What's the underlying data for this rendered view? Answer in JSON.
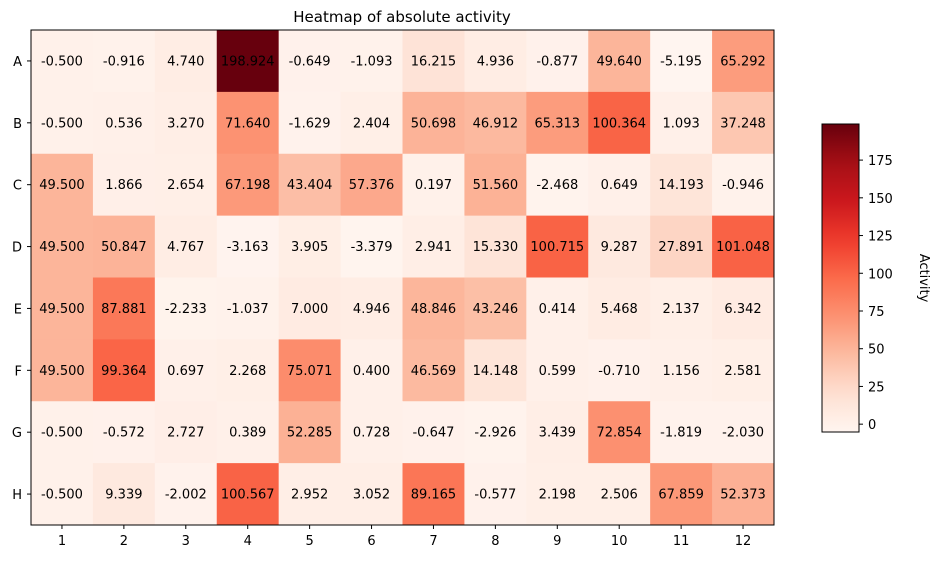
{
  "chart_data": {
    "type": "heatmap",
    "title": "Heatmap of absolute activity",
    "x_categories": [
      "1",
      "2",
      "3",
      "4",
      "5",
      "6",
      "7",
      "8",
      "9",
      "10",
      "11",
      "12"
    ],
    "y_categories": [
      "A",
      "B",
      "C",
      "D",
      "E",
      "F",
      "G",
      "H"
    ],
    "values": [
      [
        -0.5,
        -0.916,
        4.74,
        198.924,
        -0.649,
        -1.093,
        16.215,
        4.936,
        -0.877,
        49.64,
        -5.195,
        65.292
      ],
      [
        -0.5,
        0.536,
        3.27,
        71.64,
        -1.629,
        2.404,
        50.698,
        46.912,
        65.313,
        100.364,
        1.093,
        37.248
      ],
      [
        49.5,
        1.866,
        2.654,
        67.198,
        43.404,
        57.376,
        0.197,
        51.56,
        -2.468,
        0.649,
        14.193,
        -0.946
      ],
      [
        49.5,
        50.847,
        4.767,
        -3.163,
        3.905,
        -3.379,
        2.941,
        15.33,
        100.715,
        9.287,
        27.891,
        101.048
      ],
      [
        49.5,
        87.881,
        -2.233,
        -1.037,
        7.0,
        4.946,
        48.846,
        43.246,
        0.414,
        5.468,
        2.137,
        6.342
      ],
      [
        49.5,
        99.364,
        0.697,
        2.268,
        75.071,
        0.4,
        46.569,
        14.148,
        0.599,
        -0.71,
        1.156,
        2.581
      ],
      [
        -0.5,
        -0.572,
        2.727,
        0.389,
        52.285,
        0.728,
        -0.647,
        -2.926,
        3.439,
        72.854,
        -1.819,
        -2.03
      ],
      [
        -0.5,
        9.339,
        -2.002,
        100.567,
        2.952,
        3.052,
        89.165,
        -0.577,
        2.198,
        2.506,
        67.859,
        52.373
      ]
    ],
    "cell_labels": [
      [
        "-0.500",
        "-0.916",
        "4.740",
        "198.924",
        "-0.649",
        "-1.093",
        "16.215",
        "4.936",
        "-0.877",
        "49.640",
        "-5.195",
        "65.292"
      ],
      [
        "-0.500",
        "0.536",
        "3.270",
        "71.640",
        "-1.629",
        "2.404",
        "50.698",
        "46.912",
        "65.313",
        "100.364",
        "1.093",
        "37.248"
      ],
      [
        "49.500",
        "1.866",
        "2.654",
        "67.198",
        "43.404",
        "57.376",
        "0.197",
        "51.560",
        "-2.468",
        "0.649",
        "14.193",
        "-0.946"
      ],
      [
        "49.500",
        "50.847",
        "4.767",
        "-3.163",
        "3.905",
        "-3.379",
        "2.941",
        "15.330",
        "100.715",
        "9.287",
        "27.891",
        "101.048"
      ],
      [
        "49.500",
        "87.881",
        "-2.233",
        "-1.037",
        "7.000",
        "4.946",
        "48.846",
        "43.246",
        "0.414",
        "5.468",
        "2.137",
        "6.342"
      ],
      [
        "49.500",
        "99.364",
        "0.697",
        "2.268",
        "75.071",
        "0.400",
        "46.569",
        "14.148",
        "0.599",
        "-0.710",
        "1.156",
        "2.581"
      ],
      [
        "-0.500",
        "-0.572",
        "2.727",
        "0.389",
        "52.285",
        "0.728",
        "-0.647",
        "-2.926",
        "3.439",
        "72.854",
        "-1.819",
        "-2.030"
      ],
      [
        "-0.500",
        "9.339",
        "-2.002",
        "100.567",
        "2.952",
        "3.052",
        "89.165",
        "-0.577",
        "2.198",
        "2.506",
        "67.859",
        "52.373"
      ]
    ],
    "colormap": "Reds",
    "vmin": -5.195,
    "vmax": 198.924,
    "colorbar": {
      "label": "Activity",
      "ticks": [
        0,
        25,
        50,
        75,
        100,
        125,
        150,
        175
      ],
      "tick_labels": [
        "0",
        "25",
        "50",
        "75",
        "100",
        "125",
        "150",
        "175"
      ]
    },
    "grid": false,
    "legend": "none"
  }
}
